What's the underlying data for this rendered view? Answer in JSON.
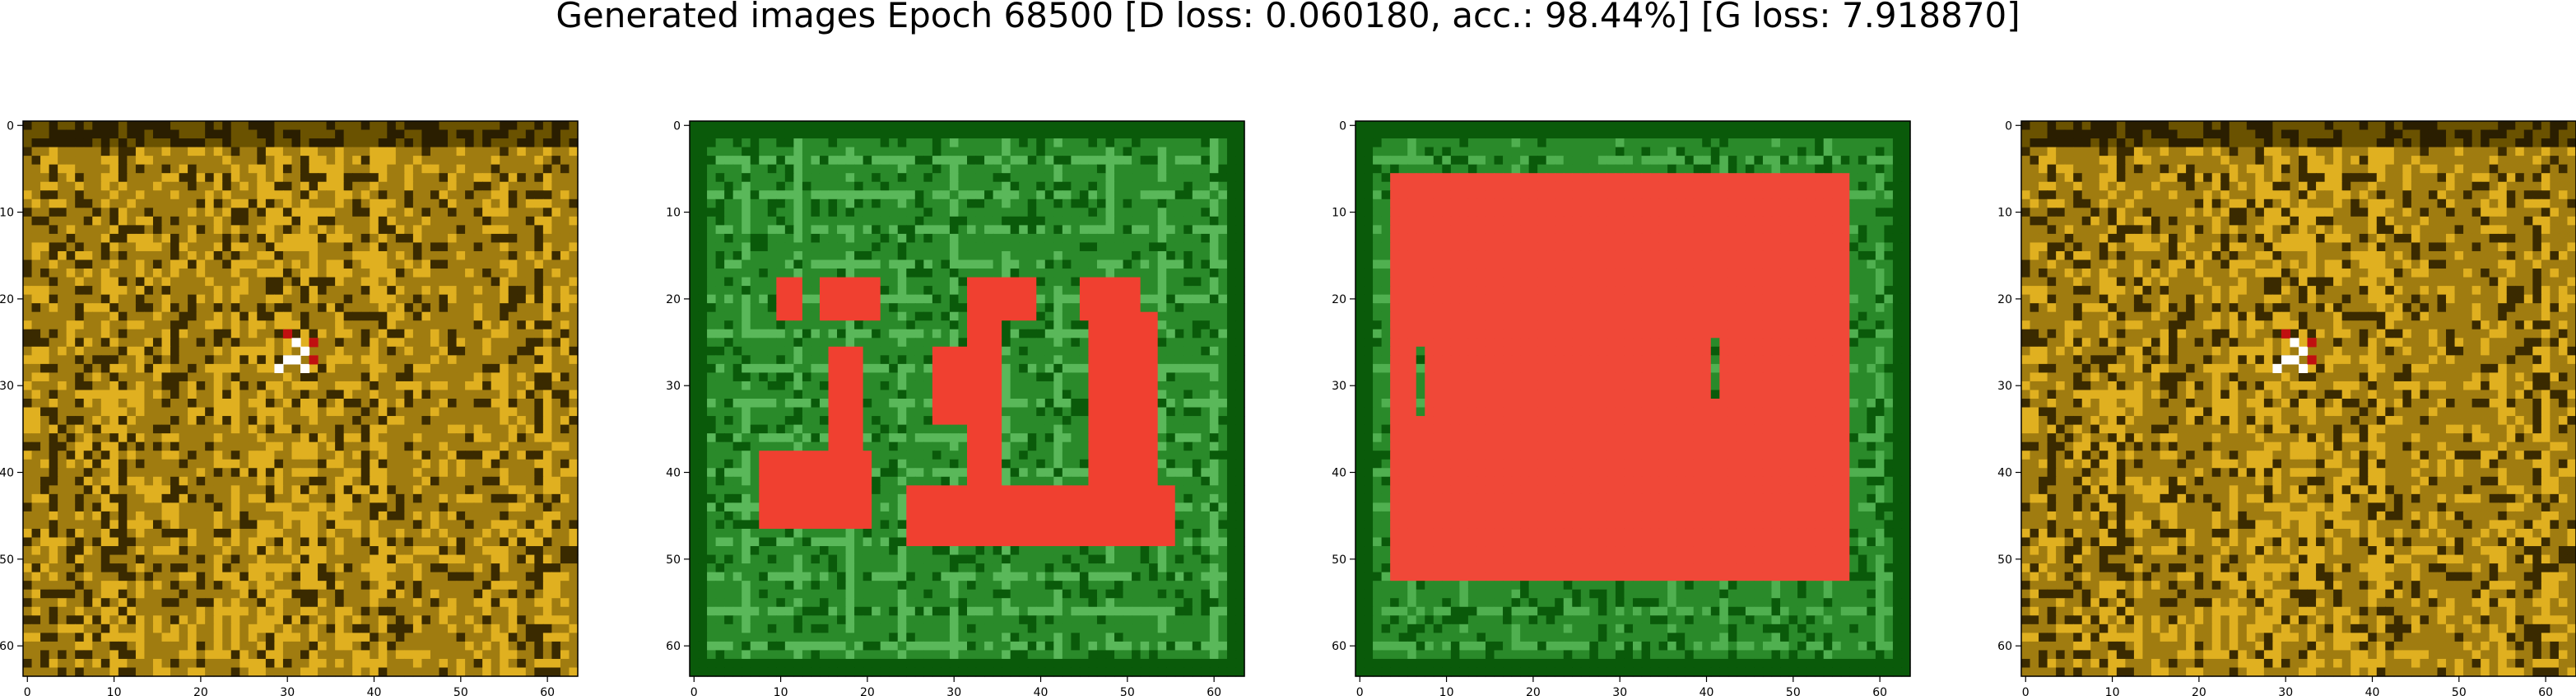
{
  "figure": {
    "title": "Generated images Epoch 68500 [D loss: 0.060180, acc.: 98.44%] [G loss: 7.918870]"
  },
  "chart_data": [
    {
      "type": "heatmap",
      "panel": 1,
      "xlim": [
        -0.5,
        63.5
      ],
      "ylim": [
        63.5,
        -0.5
      ],
      "x_ticks": [
        0,
        10,
        20,
        30,
        40,
        50,
        60
      ],
      "y_ticks": [
        0,
        10,
        20,
        30,
        40,
        50,
        60
      ],
      "xlabel": "",
      "ylabel": "",
      "image_style": "olive-gold vertical stripes",
      "colors": {
        "base": "#a07c10",
        "light": "#e0b020",
        "dark": "#3a2a00",
        "accent": "#ffffff",
        "accent2": "#c01010"
      }
    },
    {
      "type": "heatmap",
      "panel": 2,
      "xlim": [
        -0.5,
        63.5
      ],
      "ylim": [
        63.5,
        -0.5
      ],
      "x_ticks": [
        0,
        10,
        20,
        30,
        40,
        50,
        60
      ],
      "y_ticks": [
        0,
        10,
        20,
        30,
        40,
        50,
        60
      ],
      "xlabel": "",
      "ylabel": "",
      "image_style": "green frame with red glyph shapes",
      "colors": {
        "base": "#2a8a2a",
        "light": "#5ab85a",
        "dark": "#0a5a0a",
        "accent": "#f04030"
      }
    },
    {
      "type": "heatmap",
      "panel": 3,
      "xlim": [
        -0.5,
        63.5
      ],
      "ylim": [
        63.5,
        -0.5
      ],
      "x_ticks": [
        0,
        10,
        20,
        30,
        40,
        50,
        60
      ],
      "y_ticks": [
        0,
        10,
        20,
        30,
        40,
        50,
        60
      ],
      "xlabel": "",
      "ylabel": "",
      "image_style": "green frame with large red rectangle",
      "colors": {
        "base": "#2a8a2a",
        "light": "#50b050",
        "dark": "#0a5a0a",
        "accent": "#f04838"
      }
    },
    {
      "type": "heatmap",
      "panel": 4,
      "xlim": [
        -0.5,
        63.5
      ],
      "ylim": [
        63.5,
        -0.5
      ],
      "x_ticks": [
        0,
        10,
        20,
        30,
        40,
        50,
        60
      ],
      "y_ticks": [
        0,
        10,
        20,
        30,
        40,
        50,
        60
      ],
      "xlabel": "",
      "ylabel": "",
      "image_style": "olive-gold vertical stripes",
      "colors": {
        "base": "#a07c10",
        "light": "#e0b020",
        "dark": "#3a2a00",
        "accent": "#ffffff",
        "accent2": "#c01010"
      }
    }
  ]
}
